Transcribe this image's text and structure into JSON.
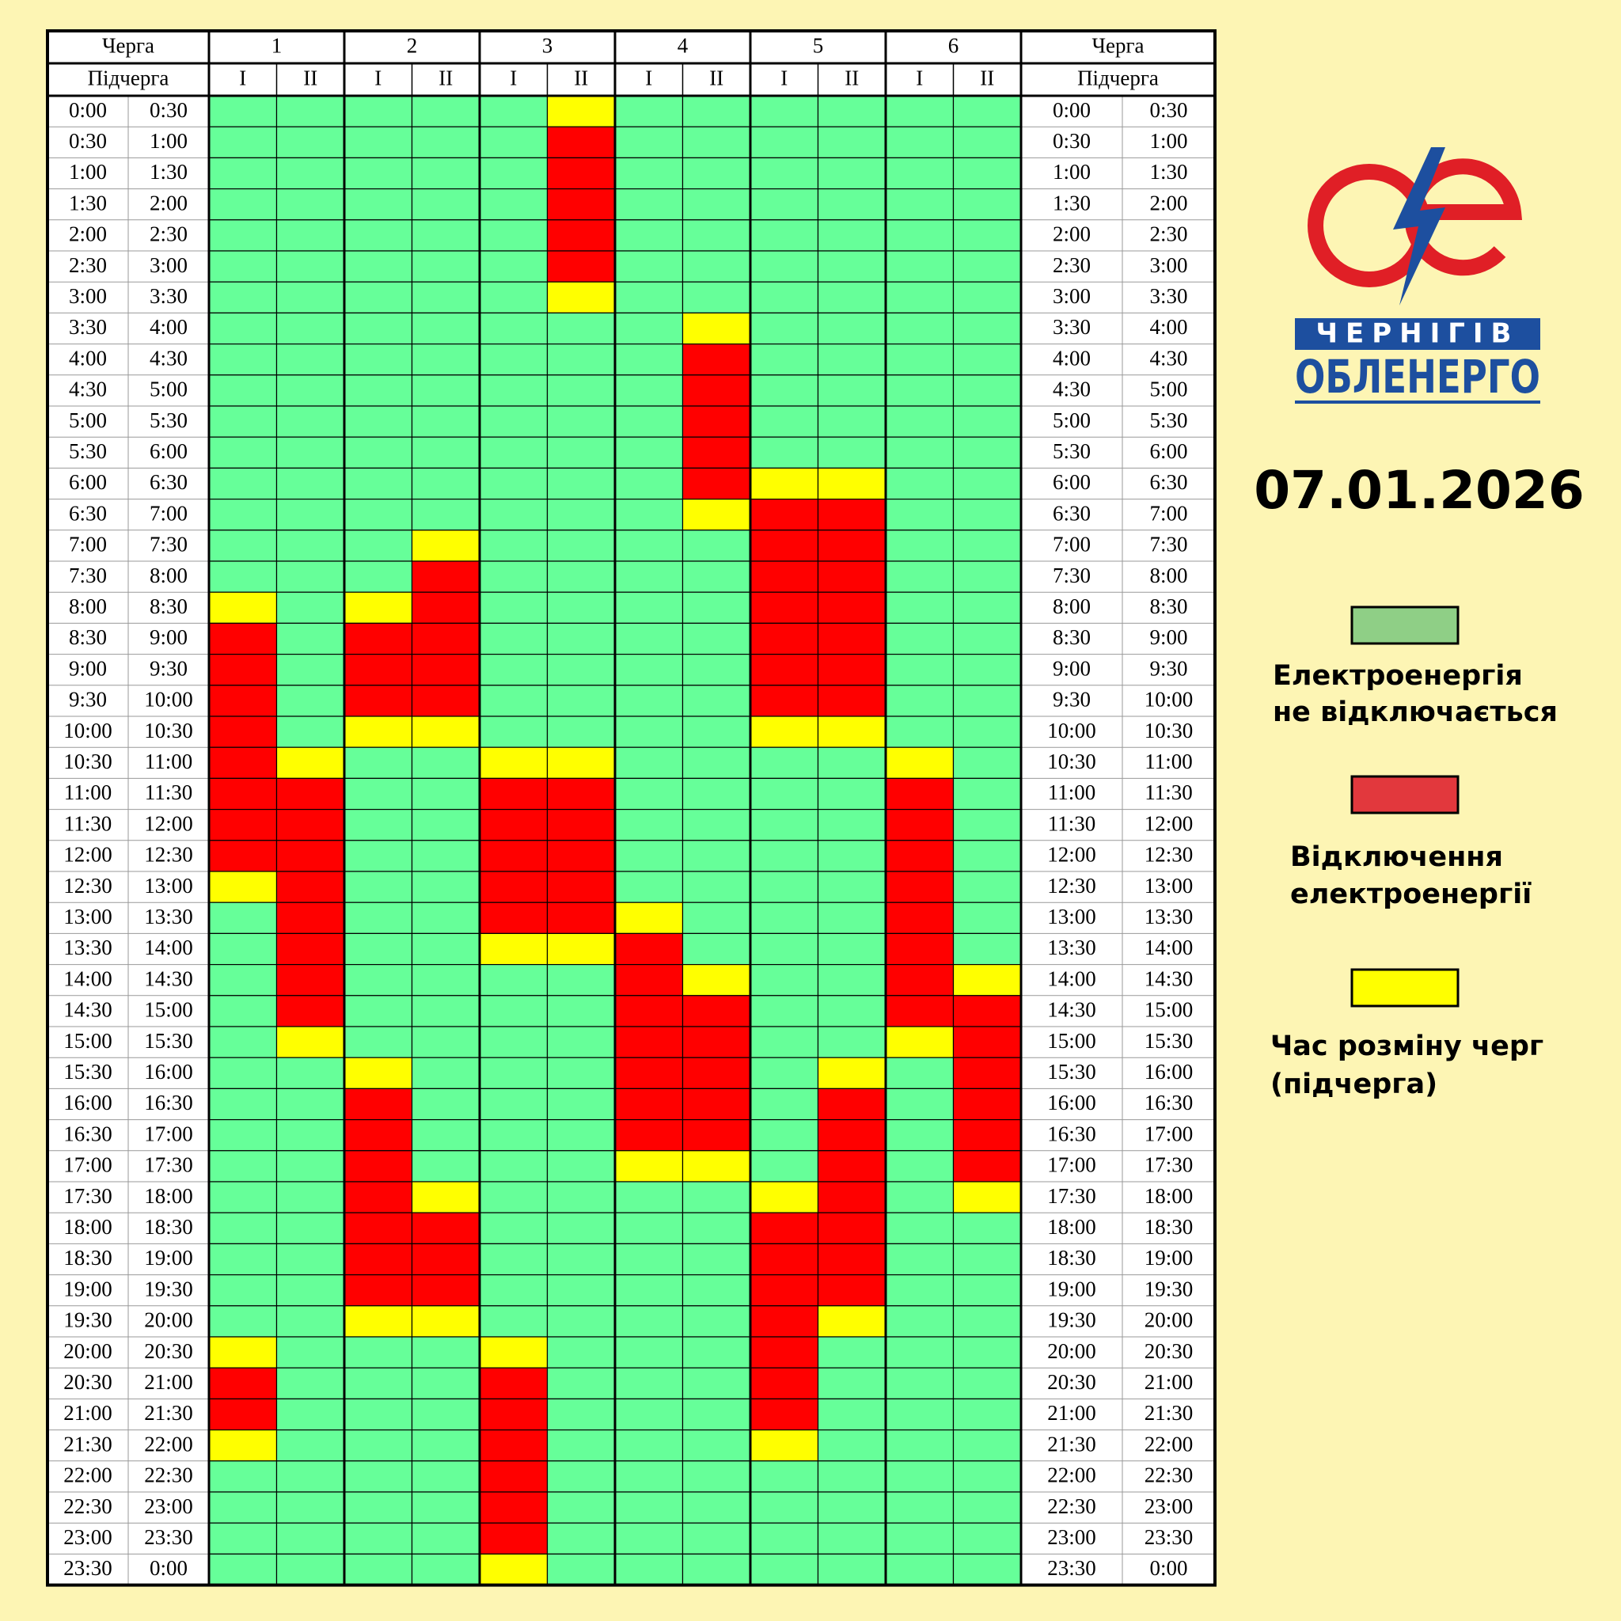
{
  "header": {
    "queue_label": "Черга",
    "subqueue_label": "Підчерга",
    "queues": [
      "1",
      "2",
      "3",
      "4",
      "5",
      "6"
    ],
    "subqueues": [
      "I",
      "II"
    ]
  },
  "rows": [
    {
      "from": "0:00",
      "to": "0:30",
      "cells": [
        "#6f9",
        "#6f9",
        "#6f9",
        "#6f9",
        "#6f9",
        "#ff0",
        "#6f9",
        "#6f9",
        "#6f9",
        "#6f9",
        "#6f9",
        "#6f9"
      ]
    },
    {
      "from": "0:30",
      "to": "1:00",
      "cells": [
        "#6f9",
        "#6f9",
        "#6f9",
        "#6f9",
        "#6f9",
        "#f00",
        "#6f9",
        "#6f9",
        "#6f9",
        "#6f9",
        "#6f9",
        "#6f9"
      ]
    },
    {
      "from": "1:00",
      "to": "1:30",
      "cells": [
        "#6f9",
        "#6f9",
        "#6f9",
        "#6f9",
        "#6f9",
        "#f00",
        "#6f9",
        "#6f9",
        "#6f9",
        "#6f9",
        "#6f9",
        "#6f9"
      ]
    },
    {
      "from": "1:30",
      "to": "2:00",
      "cells": [
        "#6f9",
        "#6f9",
        "#6f9",
        "#6f9",
        "#6f9",
        "#f00",
        "#6f9",
        "#6f9",
        "#6f9",
        "#6f9",
        "#6f9",
        "#6f9"
      ]
    },
    {
      "from": "2:00",
      "to": "2:30",
      "cells": [
        "#6f9",
        "#6f9",
        "#6f9",
        "#6f9",
        "#6f9",
        "#f00",
        "#6f9",
        "#6f9",
        "#6f9",
        "#6f9",
        "#6f9",
        "#6f9"
      ]
    },
    {
      "from": "2:30",
      "to": "3:00",
      "cells": [
        "#6f9",
        "#6f9",
        "#6f9",
        "#6f9",
        "#6f9",
        "#f00",
        "#6f9",
        "#6f9",
        "#6f9",
        "#6f9",
        "#6f9",
        "#6f9"
      ]
    },
    {
      "from": "3:00",
      "to": "3:30",
      "cells": [
        "#6f9",
        "#6f9",
        "#6f9",
        "#6f9",
        "#6f9",
        "#ff0",
        "#6f9",
        "#6f9",
        "#6f9",
        "#6f9",
        "#6f9",
        "#6f9"
      ]
    },
    {
      "from": "3:30",
      "to": "4:00",
      "cells": [
        "#6f9",
        "#6f9",
        "#6f9",
        "#6f9",
        "#6f9",
        "#6f9",
        "#6f9",
        "#ff0",
        "#6f9",
        "#6f9",
        "#6f9",
        "#6f9"
      ]
    },
    {
      "from": "4:00",
      "to": "4:30",
      "cells": [
        "#6f9",
        "#6f9",
        "#6f9",
        "#6f9",
        "#6f9",
        "#6f9",
        "#6f9",
        "#f00",
        "#6f9",
        "#6f9",
        "#6f9",
        "#6f9"
      ]
    },
    {
      "from": "4:30",
      "to": "5:00",
      "cells": [
        "#6f9",
        "#6f9",
        "#6f9",
        "#6f9",
        "#6f9",
        "#6f9",
        "#6f9",
        "#f00",
        "#6f9",
        "#6f9",
        "#6f9",
        "#6f9"
      ]
    },
    {
      "from": "5:00",
      "to": "5:30",
      "cells": [
        "#6f9",
        "#6f9",
        "#6f9",
        "#6f9",
        "#6f9",
        "#6f9",
        "#6f9",
        "#f00",
        "#6f9",
        "#6f9",
        "#6f9",
        "#6f9"
      ]
    },
    {
      "from": "5:30",
      "to": "6:00",
      "cells": [
        "#6f9",
        "#6f9",
        "#6f9",
        "#6f9",
        "#6f9",
        "#6f9",
        "#6f9",
        "#f00",
        "#6f9",
        "#6f9",
        "#6f9",
        "#6f9"
      ]
    },
    {
      "from": "6:00",
      "to": "6:30",
      "cells": [
        "#6f9",
        "#6f9",
        "#6f9",
        "#6f9",
        "#6f9",
        "#6f9",
        "#6f9",
        "#f00",
        "#ff0",
        "#ff0",
        "#6f9",
        "#6f9"
      ]
    },
    {
      "from": "6:30",
      "to": "7:00",
      "cells": [
        "#6f9",
        "#6f9",
        "#6f9",
        "#6f9",
        "#6f9",
        "#6f9",
        "#6f9",
        "#ff0",
        "#f00",
        "#f00",
        "#6f9",
        "#6f9"
      ]
    },
    {
      "from": "7:00",
      "to": "7:30",
      "cells": [
        "#6f9",
        "#6f9",
        "#6f9",
        "#ff0",
        "#6f9",
        "#6f9",
        "#6f9",
        "#6f9",
        "#f00",
        "#f00",
        "#6f9",
        "#6f9"
      ]
    },
    {
      "from": "7:30",
      "to": "8:00",
      "cells": [
        "#6f9",
        "#6f9",
        "#6f9",
        "#f00",
        "#6f9",
        "#6f9",
        "#6f9",
        "#6f9",
        "#f00",
        "#f00",
        "#6f9",
        "#6f9"
      ]
    },
    {
      "from": "8:00",
      "to": "8:30",
      "cells": [
        "#ff0",
        "#6f9",
        "#ff0",
        "#f00",
        "#6f9",
        "#6f9",
        "#6f9",
        "#6f9",
        "#f00",
        "#f00",
        "#6f9",
        "#6f9"
      ]
    },
    {
      "from": "8:30",
      "to": "9:00",
      "cells": [
        "#f00",
        "#6f9",
        "#f00",
        "#f00",
        "#6f9",
        "#6f9",
        "#6f9",
        "#6f9",
        "#f00",
        "#f00",
        "#6f9",
        "#6f9"
      ]
    },
    {
      "from": "9:00",
      "to": "9:30",
      "cells": [
        "#f00",
        "#6f9",
        "#f00",
        "#f00",
        "#6f9",
        "#6f9",
        "#6f9",
        "#6f9",
        "#f00",
        "#f00",
        "#6f9",
        "#6f9"
      ]
    },
    {
      "from": "9:30",
      "to": "10:00",
      "cells": [
        "#f00",
        "#6f9",
        "#f00",
        "#f00",
        "#6f9",
        "#6f9",
        "#6f9",
        "#6f9",
        "#f00",
        "#f00",
        "#6f9",
        "#6f9"
      ]
    },
    {
      "from": "10:00",
      "to": "10:30",
      "cells": [
        "#f00",
        "#6f9",
        "#ff0",
        "#ff0",
        "#6f9",
        "#6f9",
        "#6f9",
        "#6f9",
        "#ff0",
        "#ff0",
        "#6f9",
        "#6f9"
      ]
    },
    {
      "from": "10:30",
      "to": "11:00",
      "cells": [
        "#f00",
        "#ff0",
        "#6f9",
        "#6f9",
        "#ff0",
        "#ff0",
        "#6f9",
        "#6f9",
        "#6f9",
        "#6f9",
        "#ff0",
        "#6f9"
      ]
    },
    {
      "from": "11:00",
      "to": "11:30",
      "cells": [
        "#f00",
        "#f00",
        "#6f9",
        "#6f9",
        "#f00",
        "#f00",
        "#6f9",
        "#6f9",
        "#6f9",
        "#6f9",
        "#f00",
        "#6f9"
      ]
    },
    {
      "from": "11:30",
      "to": "12:00",
      "cells": [
        "#f00",
        "#f00",
        "#6f9",
        "#6f9",
        "#f00",
        "#f00",
        "#6f9",
        "#6f9",
        "#6f9",
        "#6f9",
        "#f00",
        "#6f9"
      ]
    },
    {
      "from": "12:00",
      "to": "12:30",
      "cells": [
        "#f00",
        "#f00",
        "#6f9",
        "#6f9",
        "#f00",
        "#f00",
        "#6f9",
        "#6f9",
        "#6f9",
        "#6f9",
        "#f00",
        "#6f9"
      ]
    },
    {
      "from": "12:30",
      "to": "13:00",
      "cells": [
        "#ff0",
        "#f00",
        "#6f9",
        "#6f9",
        "#f00",
        "#f00",
        "#6f9",
        "#6f9",
        "#6f9",
        "#6f9",
        "#f00",
        "#6f9"
      ]
    },
    {
      "from": "13:00",
      "to": "13:30",
      "cells": [
        "#6f9",
        "#f00",
        "#6f9",
        "#6f9",
        "#f00",
        "#f00",
        "#ff0",
        "#6f9",
        "#6f9",
        "#6f9",
        "#f00",
        "#6f9"
      ]
    },
    {
      "from": "13:30",
      "to": "14:00",
      "cells": [
        "#6f9",
        "#f00",
        "#6f9",
        "#6f9",
        "#ff0",
        "#ff0",
        "#f00",
        "#6f9",
        "#6f9",
        "#6f9",
        "#f00",
        "#6f9"
      ]
    },
    {
      "from": "14:00",
      "to": "14:30",
      "cells": [
        "#6f9",
        "#f00",
        "#6f9",
        "#6f9",
        "#6f9",
        "#6f9",
        "#f00",
        "#ff0",
        "#6f9",
        "#6f9",
        "#f00",
        "#ff0"
      ]
    },
    {
      "from": "14:30",
      "to": "15:00",
      "cells": [
        "#6f9",
        "#f00",
        "#6f9",
        "#6f9",
        "#6f9",
        "#6f9",
        "#f00",
        "#f00",
        "#6f9",
        "#6f9",
        "#f00",
        "#f00"
      ]
    },
    {
      "from": "15:00",
      "to": "15:30",
      "cells": [
        "#6f9",
        "#ff0",
        "#6f9",
        "#6f9",
        "#6f9",
        "#6f9",
        "#f00",
        "#f00",
        "#6f9",
        "#6f9",
        "#ff0",
        "#f00"
      ]
    },
    {
      "from": "15:30",
      "to": "16:00",
      "cells": [
        "#6f9",
        "#6f9",
        "#ff0",
        "#6f9",
        "#6f9",
        "#6f9",
        "#f00",
        "#f00",
        "#6f9",
        "#ff0",
        "#6f9",
        "#f00"
      ]
    },
    {
      "from": "16:00",
      "to": "16:30",
      "cells": [
        "#6f9",
        "#6f9",
        "#f00",
        "#6f9",
        "#6f9",
        "#6f9",
        "#f00",
        "#f00",
        "#6f9",
        "#f00",
        "#6f9",
        "#f00"
      ]
    },
    {
      "from": "16:30",
      "to": "17:00",
      "cells": [
        "#6f9",
        "#6f9",
        "#f00",
        "#6f9",
        "#6f9",
        "#6f9",
        "#f00",
        "#f00",
        "#6f9",
        "#f00",
        "#6f9",
        "#f00"
      ]
    },
    {
      "from": "17:00",
      "to": "17:30",
      "cells": [
        "#6f9",
        "#6f9",
        "#f00",
        "#6f9",
        "#6f9",
        "#6f9",
        "#ff0",
        "#ff0",
        "#6f9",
        "#f00",
        "#6f9",
        "#f00"
      ]
    },
    {
      "from": "17:30",
      "to": "18:00",
      "cells": [
        "#6f9",
        "#6f9",
        "#f00",
        "#ff0",
        "#6f9",
        "#6f9",
        "#6f9",
        "#6f9",
        "#ff0",
        "#f00",
        "#6f9",
        "#ff0"
      ]
    },
    {
      "from": "18:00",
      "to": "18:30",
      "cells": [
        "#6f9",
        "#6f9",
        "#f00",
        "#f00",
        "#6f9",
        "#6f9",
        "#6f9",
        "#6f9",
        "#f00",
        "#f00",
        "#6f9",
        "#6f9"
      ]
    },
    {
      "from": "18:30",
      "to": "19:00",
      "cells": [
        "#6f9",
        "#6f9",
        "#f00",
        "#f00",
        "#6f9",
        "#6f9",
        "#6f9",
        "#6f9",
        "#f00",
        "#f00",
        "#6f9",
        "#6f9"
      ]
    },
    {
      "from": "19:00",
      "to": "19:30",
      "cells": [
        "#6f9",
        "#6f9",
        "#f00",
        "#f00",
        "#6f9",
        "#6f9",
        "#6f9",
        "#6f9",
        "#f00",
        "#f00",
        "#6f9",
        "#6f9"
      ]
    },
    {
      "from": "19:30",
      "to": "20:00",
      "cells": [
        "#6f9",
        "#6f9",
        "#ff0",
        "#ff0",
        "#6f9",
        "#6f9",
        "#6f9",
        "#6f9",
        "#f00",
        "#ff0",
        "#6f9",
        "#6f9"
      ]
    },
    {
      "from": "20:00",
      "to": "20:30",
      "cells": [
        "#ff0",
        "#6f9",
        "#6f9",
        "#6f9",
        "#ff0",
        "#6f9",
        "#6f9",
        "#6f9",
        "#f00",
        "#6f9",
        "#6f9",
        "#6f9"
      ]
    },
    {
      "from": "20:30",
      "to": "21:00",
      "cells": [
        "#f00",
        "#6f9",
        "#6f9",
        "#6f9",
        "#f00",
        "#6f9",
        "#6f9",
        "#6f9",
        "#f00",
        "#6f9",
        "#6f9",
        "#6f9"
      ]
    },
    {
      "from": "21:00",
      "to": "21:30",
      "cells": [
        "#f00",
        "#6f9",
        "#6f9",
        "#6f9",
        "#f00",
        "#6f9",
        "#6f9",
        "#6f9",
        "#f00",
        "#6f9",
        "#6f9",
        "#6f9"
      ]
    },
    {
      "from": "21:30",
      "to": "22:00",
      "cells": [
        "#ff0",
        "#6f9",
        "#6f9",
        "#6f9",
        "#f00",
        "#6f9",
        "#6f9",
        "#6f9",
        "#ff0",
        "#6f9",
        "#6f9",
        "#6f9"
      ]
    },
    {
      "from": "22:00",
      "to": "22:30",
      "cells": [
        "#6f9",
        "#6f9",
        "#6f9",
        "#6f9",
        "#f00",
        "#6f9",
        "#6f9",
        "#6f9",
        "#6f9",
        "#6f9",
        "#6f9",
        "#6f9"
      ]
    },
    {
      "from": "22:30",
      "to": "23:00",
      "cells": [
        "#6f9",
        "#6f9",
        "#6f9",
        "#6f9",
        "#f00",
        "#6f9",
        "#6f9",
        "#6f9",
        "#6f9",
        "#6f9",
        "#6f9",
        "#6f9"
      ]
    },
    {
      "from": "23:00",
      "to": "23:30",
      "cells": [
        "#6f9",
        "#6f9",
        "#6f9",
        "#6f9",
        "#f00",
        "#6f9",
        "#6f9",
        "#6f9",
        "#6f9",
        "#6f9",
        "#6f9",
        "#6f9"
      ]
    },
    {
      "from": "23:30",
      "to": "0:00",
      "cells": [
        "#6f9",
        "#6f9",
        "#6f9",
        "#6f9",
        "#ff0",
        "#6f9",
        "#6f9",
        "#6f9",
        "#6f9",
        "#6f9",
        "#6f9",
        "#6f9"
      ]
    }
  ],
  "logo": {
    "line1": "ЧЕРНІГІВ",
    "line2": "ОБЛЕНЕРГО"
  },
  "date": "07.01.2026",
  "legend": [
    {
      "lines": [
        "Електроенергія",
        "не відключається"
      ],
      "color": "#8fcf86"
    },
    {
      "lines": [
        "Відключення",
        "електроенергії"
      ],
      "color": "#e2383d"
    },
    {
      "lines": [
        "Час розміну черг",
        "(підчерга)"
      ],
      "color": "#ffff00"
    }
  ]
}
